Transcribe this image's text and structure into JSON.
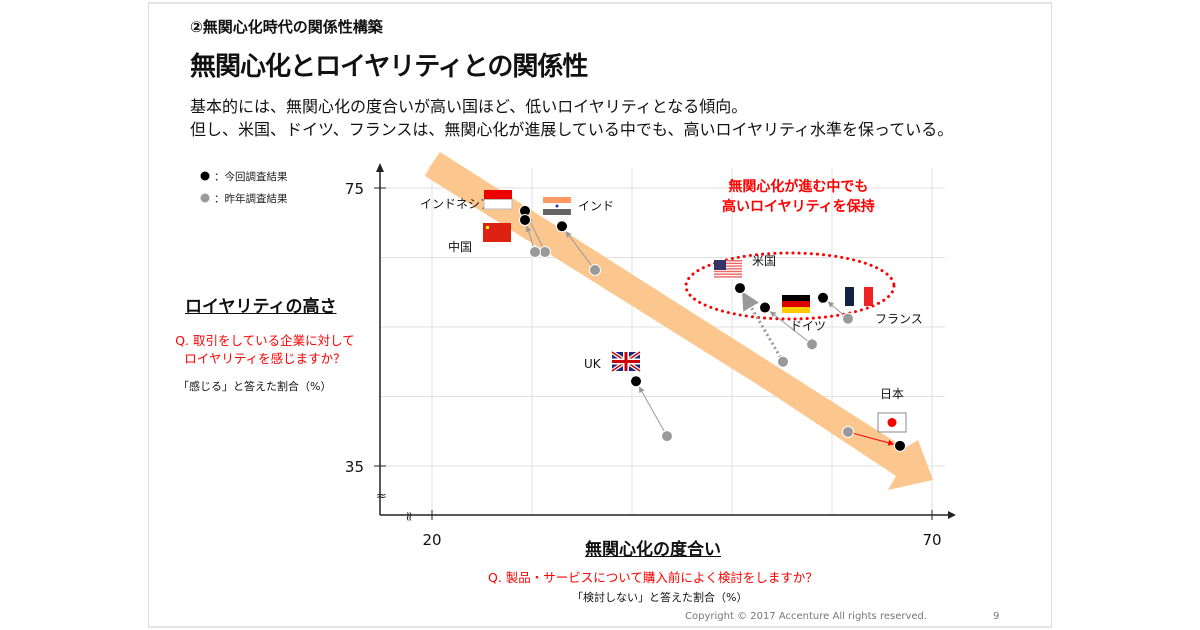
{
  "header": {
    "subtitle": "②無関心化時代の関係性構築",
    "title": "無関心化とロイヤリティとの関係性",
    "desc_lines": [
      "基本的には、無関心化の度合いが高い国ほど、低いロイヤリティとなる傾向。",
      "但し、米国、ドイツ、フランスは、無関心化が進展している中でも、高いロイヤリティ水準を保っている。"
    ]
  },
  "footer": {
    "copyright": "Copyright © 2017 Accenture  All rights reserved.",
    "page": "9"
  },
  "colors": {
    "current": "#000000",
    "previous": "#999999",
    "trend": "#fbc78f",
    "highlight": "#ff0000"
  },
  "chart_data": {
    "type": "scatter",
    "title": "無関心化とロイヤリティとの関係性",
    "xlabel": "無関心化の度合い",
    "x_question": "Q. 製品・サービスについて購入前によく検討をしますか？",
    "x_note": "「検討しない」と答えた割合（%）",
    "ylabel": "ロイヤリティの高さ",
    "y_question_lines": [
      "Q. 取引をしている企業に対して",
      "ロイヤリティを感じますか？"
    ],
    "y_note": "「感じる」と答えた割合（%）",
    "xlim": [
      20,
      70
    ],
    "ylim": [
      35,
      75
    ],
    "x_ticks": [
      "20",
      "70"
    ],
    "y_ticks": [
      "75",
      "35"
    ],
    "grid": true,
    "legend": {
      "position": "top-left",
      "current": "●：今回調査結果",
      "previous": "●：昨年調査結果"
    },
    "callout_lines": [
      "無関心化が進む中でも",
      "高いロイヤリティを保持"
    ],
    "countries": [
      {
        "name": "インドネシア",
        "current": [
          29.3,
          71.7
        ],
        "previous": [
          31.3,
          65.8
        ]
      },
      {
        "name": "中国",
        "current": [
          29.3,
          70.4
        ],
        "previous": [
          30.3,
          65.8
        ]
      },
      {
        "name": "インド",
        "current": [
          33.0,
          69.5
        ],
        "previous": [
          36.3,
          63.2
        ]
      },
      {
        "name": "米国",
        "current": [
          50.8,
          60.6
        ],
        "previous": [
          55.1,
          50.0
        ]
      },
      {
        "name": "ドイツ",
        "current": [
          53.3,
          57.8
        ],
        "previous": [
          58.0,
          52.5
        ]
      },
      {
        "name": "フランス",
        "current": [
          59.1,
          59.2
        ],
        "previous": [
          61.6,
          56.2
        ]
      },
      {
        "name": "UK",
        "current": [
          40.4,
          47.2
        ],
        "previous": [
          43.5,
          39.3
        ]
      },
      {
        "name": "日本",
        "current": [
          66.8,
          37.9
        ],
        "previous": [
          61.6,
          39.9
        ]
      }
    ]
  }
}
